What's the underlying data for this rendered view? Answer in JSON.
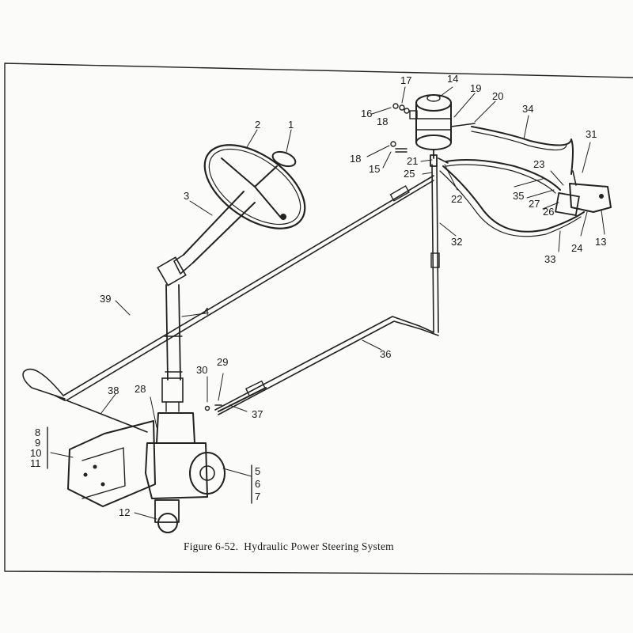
{
  "figure": {
    "caption": "Figure 6-52.  Hydraulic Power Steering System",
    "callouts": {
      "c1": "1",
      "c2": "2",
      "c3": "3",
      "c4": "4",
      "c5": "5",
      "c6": "6",
      "c7": "7",
      "c8": "8",
      "c9": "9",
      "c10": "10",
      "c11": "11",
      "c12": "12",
      "c13": "13",
      "c14": "14",
      "c15": "15",
      "c16": "16",
      "c17": "17",
      "c18a": "18",
      "c18b": "18",
      "c19": "19",
      "c20": "20",
      "c21": "21",
      "c22": "22",
      "c23": "23",
      "c24": "24",
      "c25": "25",
      "c26": "26",
      "c27": "27",
      "c28": "28",
      "c29": "29",
      "c30": "30",
      "c31": "31",
      "c32": "32",
      "c33": "33",
      "c34": "34",
      "c35": "35",
      "c36": "36",
      "c37": "37",
      "c38": "38",
      "c39": "39"
    }
  }
}
